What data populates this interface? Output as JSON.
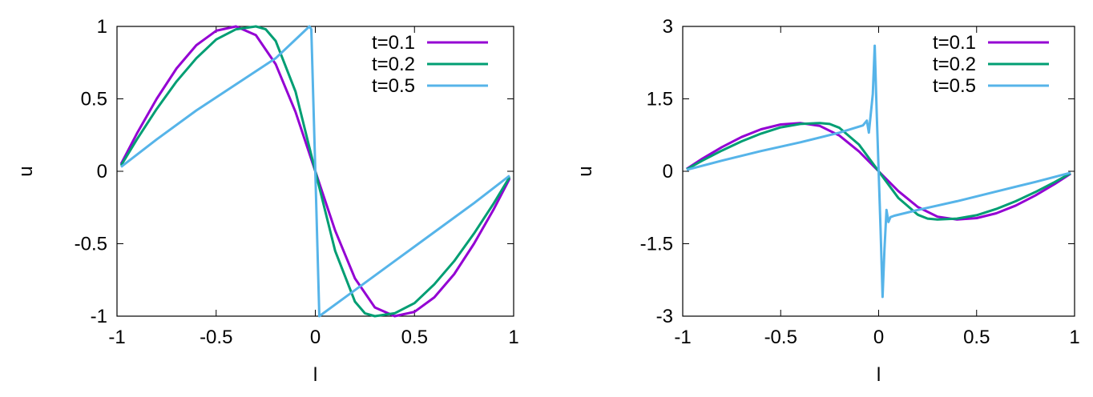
{
  "chart_data": [
    {
      "type": "line",
      "xlabel": "l",
      "ylabel": "u",
      "xlim": [
        -1,
        1
      ],
      "ylim": [
        -1,
        1
      ],
      "x_ticks": [
        "-1",
        "-0.5",
        "0",
        "0.5",
        "1"
      ],
      "y_ticks": [
        "-1",
        "-0.5",
        "0",
        "0.5",
        "1"
      ],
      "grid": false,
      "legend_position": "top-right",
      "series": [
        {
          "name": "t=0.1",
          "color": "#9400d3",
          "x": [
            -0.98,
            -0.9,
            -0.8,
            -0.7,
            -0.6,
            -0.5,
            -0.4,
            -0.3,
            -0.2,
            -0.1,
            0,
            0.1,
            0.2,
            0.3,
            0.4,
            0.5,
            0.6,
            0.7,
            0.8,
            0.9,
            0.98
          ],
          "y": [
            0.05,
            0.26,
            0.5,
            0.71,
            0.87,
            0.97,
            1.0,
            0.94,
            0.74,
            0.41,
            0,
            -0.41,
            -0.74,
            -0.94,
            -1.0,
            -0.97,
            -0.87,
            -0.71,
            -0.5,
            -0.26,
            -0.05
          ]
        },
        {
          "name": "t=0.2",
          "color": "#009e73",
          "x": [
            -0.98,
            -0.9,
            -0.8,
            -0.7,
            -0.6,
            -0.5,
            -0.4,
            -0.3,
            -0.25,
            -0.2,
            -0.1,
            0,
            0.1,
            0.2,
            0.25,
            0.3,
            0.4,
            0.5,
            0.6,
            0.7,
            0.8,
            0.9,
            0.98
          ],
          "y": [
            0.04,
            0.22,
            0.43,
            0.62,
            0.78,
            0.91,
            0.98,
            1.0,
            0.98,
            0.9,
            0.55,
            0,
            -0.55,
            -0.9,
            -0.98,
            -1.0,
            -0.98,
            -0.91,
            -0.78,
            -0.62,
            -0.43,
            -0.22,
            -0.04
          ]
        },
        {
          "name": "t=0.5",
          "color": "#56b4e9",
          "x": [
            -0.98,
            -0.8,
            -0.6,
            -0.4,
            -0.2,
            -0.03,
            -0.02,
            0.0,
            0.02,
            0.2,
            0.4,
            0.6,
            0.8,
            0.98
          ],
          "y": [
            0.03,
            0.22,
            0.42,
            0.6,
            0.78,
            1.0,
            0.98,
            0,
            -1.0,
            -0.82,
            -0.62,
            -0.42,
            -0.22,
            -0.03
          ]
        }
      ]
    },
    {
      "type": "line",
      "xlabel": "l",
      "ylabel": "u",
      "xlim": [
        -1,
        1
      ],
      "ylim": [
        -3,
        3
      ],
      "x_ticks": [
        "-1",
        "-0.5",
        "0",
        "0.5",
        "1"
      ],
      "y_ticks": [
        "-3",
        "-1.5",
        "0",
        "1.5",
        "3"
      ],
      "grid": false,
      "legend_position": "top-right",
      "series": [
        {
          "name": "t=0.1",
          "color": "#9400d3",
          "x": [
            -0.98,
            -0.9,
            -0.8,
            -0.7,
            -0.6,
            -0.5,
            -0.4,
            -0.3,
            -0.2,
            -0.1,
            0,
            0.1,
            0.2,
            0.3,
            0.4,
            0.5,
            0.6,
            0.7,
            0.8,
            0.9,
            0.98
          ],
          "y": [
            0.05,
            0.26,
            0.5,
            0.71,
            0.87,
            0.97,
            1.0,
            0.94,
            0.74,
            0.41,
            0,
            -0.41,
            -0.74,
            -0.94,
            -1.0,
            -0.97,
            -0.87,
            -0.71,
            -0.5,
            -0.26,
            -0.05
          ]
        },
        {
          "name": "t=0.2",
          "color": "#009e73",
          "x": [
            -0.98,
            -0.9,
            -0.8,
            -0.7,
            -0.6,
            -0.5,
            -0.4,
            -0.3,
            -0.25,
            -0.2,
            -0.1,
            0,
            0.1,
            0.2,
            0.25,
            0.3,
            0.4,
            0.5,
            0.6,
            0.7,
            0.8,
            0.9,
            0.98
          ],
          "y": [
            0.04,
            0.22,
            0.43,
            0.62,
            0.78,
            0.91,
            0.98,
            1.0,
            0.98,
            0.9,
            0.55,
            0,
            -0.55,
            -0.9,
            -0.98,
            -1.0,
            -0.98,
            -0.91,
            -0.78,
            -0.62,
            -0.43,
            -0.22,
            -0.04
          ]
        },
        {
          "name": "t=0.5",
          "color": "#56b4e9",
          "x": [
            -0.98,
            -0.8,
            -0.6,
            -0.4,
            -0.2,
            -0.08,
            -0.06,
            -0.05,
            -0.03,
            -0.02,
            -0.01,
            0.0,
            0.01,
            0.02,
            0.03,
            0.04,
            0.05,
            0.06,
            0.08,
            0.2,
            0.4,
            0.6,
            0.8,
            0.98
          ],
          "y": [
            0.03,
            0.22,
            0.42,
            0.6,
            0.8,
            0.95,
            1.05,
            0.8,
            1.6,
            2.6,
            1.2,
            0,
            -1.2,
            -2.6,
            -1.6,
            -0.8,
            -1.05,
            -0.95,
            -0.92,
            -0.8,
            -0.62,
            -0.42,
            -0.22,
            -0.03
          ]
        }
      ]
    }
  ]
}
